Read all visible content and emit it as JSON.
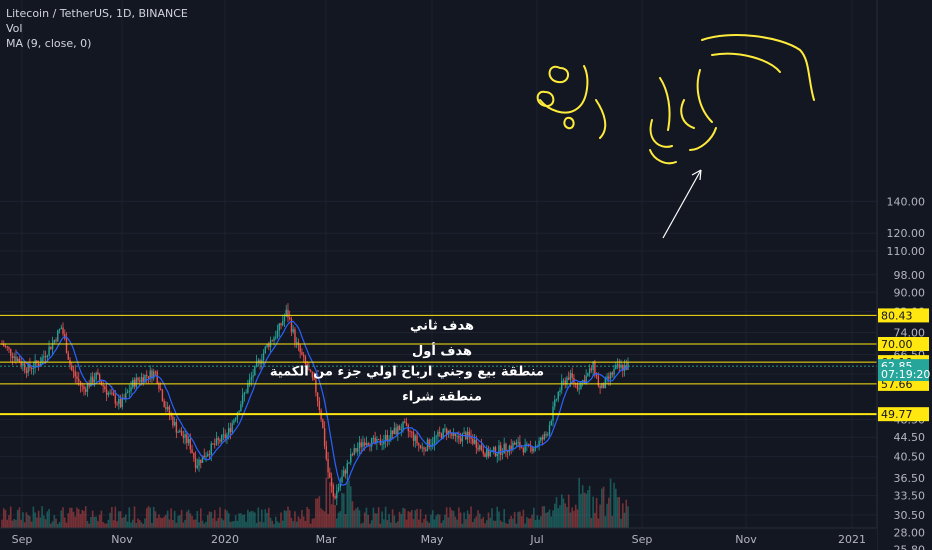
{
  "legend": {
    "symbol_line": "Litecoin / TetherUS, 1D, BINANCE",
    "volume_label": "Vol",
    "ma_label": "MA (9, close, 0)"
  },
  "chart_data": {
    "type": "candlestick",
    "title": "Litecoin / TetherUS, 1D, BINANCE",
    "y_scale": "log",
    "ylim": [
      24.5,
      141
    ],
    "x_ticks": [
      "Sep",
      "Nov",
      "2020",
      "Mar",
      "May",
      "Jul",
      "Sep",
      "Nov",
      "2021"
    ],
    "y_ticks": [
      140.0,
      120.0,
      110.0,
      98.0,
      90.0,
      82.0,
      74.0,
      66.5,
      60.5,
      48.5,
      44.5,
      40.5,
      36.5,
      33.5,
      30.5,
      28.0,
      25.8
    ],
    "price_path": [
      [
        0,
        70
      ],
      [
        0.02,
        66
      ],
      [
        0.04,
        62
      ],
      [
        0.06,
        64
      ],
      [
        0.08,
        70
      ],
      [
        0.095,
        76
      ],
      [
        0.11,
        62
      ],
      [
        0.13,
        56
      ],
      [
        0.15,
        60
      ],
      [
        0.17,
        55
      ],
      [
        0.19,
        52
      ],
      [
        0.21,
        58
      ],
      [
        0.23,
        60
      ],
      [
        0.245,
        61
      ],
      [
        0.26,
        52
      ],
      [
        0.28,
        46
      ],
      [
        0.3,
        43
      ],
      [
        0.31,
        39
      ],
      [
        0.325,
        41
      ],
      [
        0.34,
        43
      ],
      [
        0.36,
        45
      ],
      [
        0.38,
        52
      ],
      [
        0.4,
        60
      ],
      [
        0.41,
        64
      ],
      [
        0.425,
        70
      ],
      [
        0.44,
        74
      ],
      [
        0.455,
        82
      ],
      [
        0.47,
        70
      ],
      [
        0.485,
        63
      ],
      [
        0.5,
        57
      ],
      [
        0.51,
        49
      ],
      [
        0.52,
        38
      ],
      [
        0.53,
        33
      ],
      [
        0.545,
        37
      ],
      [
        0.56,
        41
      ],
      [
        0.58,
        44
      ],
      [
        0.6,
        43
      ],
      [
        0.62,
        45
      ],
      [
        0.64,
        47
      ],
      [
        0.655,
        45
      ],
      [
        0.67,
        42
      ],
      [
        0.69,
        44
      ],
      [
        0.71,
        46
      ],
      [
        0.725,
        44
      ],
      [
        0.74,
        45
      ],
      [
        0.76,
        43
      ],
      [
        0.775,
        41
      ],
      [
        0.8,
        42
      ],
      [
        0.82,
        43
      ],
      [
        0.84,
        42
      ],
      [
        0.855,
        43
      ],
      [
        0.87,
        45
      ],
      [
        0.89,
        56
      ],
      [
        0.905,
        60
      ],
      [
        0.92,
        57
      ],
      [
        0.935,
        60
      ],
      [
        0.945,
        63
      ],
      [
        0.955,
        56
      ],
      [
        0.965,
        58
      ],
      [
        0.98,
        62
      ],
      [
        1.0,
        62.85
      ]
    ],
    "moving_average": {
      "name": "MA (9, close, 0)",
      "period": 9,
      "color": "#2962ff"
    },
    "volume_label": "Vol",
    "horizontal_levels": [
      {
        "value": 80.43,
        "color": "#ffe70f"
      },
      {
        "value": 70.0,
        "color": "#ffe70f"
      },
      {
        "value": 64.1,
        "color": "#ffe70f"
      },
      {
        "value": 57.66,
        "color": "#ffe70f"
      },
      {
        "value": 49.77,
        "color": "#ffe70f"
      }
    ],
    "last_price": {
      "value": 62.85,
      "color": "#26a69a"
    },
    "countdown": {
      "text": "07:19:20",
      "value": 60.5,
      "color": "#26a69a"
    },
    "annotations": [
      {
        "text": "هدف ثاني",
        "value": 77.0
      },
      {
        "text": "هدف أول",
        "value": 68.0
      },
      {
        "text": "منطقة بيع وجني ارباح اولي جزء من الكمية",
        "value": 61.5
      },
      {
        "text": "منطقة شراء",
        "value": 54.5
      }
    ],
    "up_color": "#26a69a",
    "down_color": "#ef5350"
  }
}
